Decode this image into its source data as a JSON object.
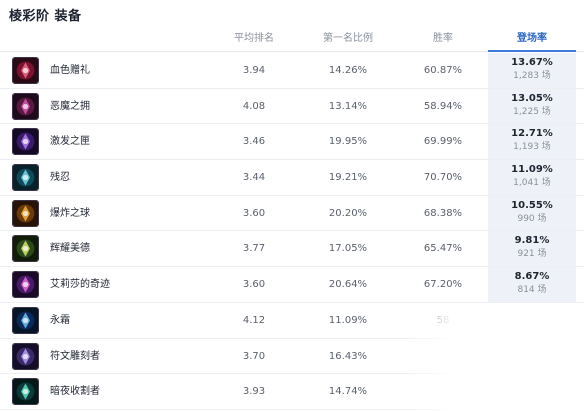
{
  "page": {
    "title": "棱彩阶 装备"
  },
  "columns": {
    "avg_rank": "平均排名",
    "top1_rate": "第一名比例",
    "win_rate": "胜率",
    "pick_rate": "登场率"
  },
  "colors": {
    "accent": "#3d7be0",
    "highlight_bg": "#eef2f8"
  },
  "items": [
    {
      "name": "血色赠礼",
      "icon": "crimson-gift-icon",
      "avg_rank": "3.94",
      "top1_rate": "14.26%",
      "win_rate": "60.87%",
      "pick_rate": "13.67%",
      "games": "1,283 场"
    },
    {
      "name": "恶魔之拥",
      "icon": "demonic-embrace-icon",
      "avg_rank": "4.08",
      "top1_rate": "13.14%",
      "win_rate": "58.94%",
      "pick_rate": "13.05%",
      "games": "1,225 场"
    },
    {
      "name": "激发之匣",
      "icon": "excitation-box-icon",
      "avg_rank": "3.46",
      "top1_rate": "19.95%",
      "win_rate": "69.99%",
      "pick_rate": "12.71%",
      "games": "1,193 场"
    },
    {
      "name": "残忍",
      "icon": "cruelty-icon",
      "avg_rank": "3.44",
      "top1_rate": "19.21%",
      "win_rate": "70.70%",
      "pick_rate": "11.09%",
      "games": "1,041 场"
    },
    {
      "name": "爆炸之球",
      "icon": "explosion-orb-icon",
      "avg_rank": "3.60",
      "top1_rate": "20.20%",
      "win_rate": "68.38%",
      "pick_rate": "10.55%",
      "games": "990 场"
    },
    {
      "name": "辉耀美德",
      "icon": "radiant-virtue-icon",
      "avg_rank": "3.77",
      "top1_rate": "17.05%",
      "win_rate": "65.47%",
      "pick_rate": "9.81%",
      "games": "921 场"
    },
    {
      "name": "艾莉莎的奇迹",
      "icon": "elisa-miracle-icon",
      "avg_rank": "3.60",
      "top1_rate": "20.64%",
      "win_rate": "67.20%",
      "pick_rate": "8.67%",
      "games": "814 场"
    },
    {
      "name": "永霜",
      "icon": "everfrost-icon",
      "avg_rank": "4.12",
      "top1_rate": "11.09%",
      "win_rate": "58",
      "pick_rate": "",
      "games": ""
    },
    {
      "name": "符文雕刻者",
      "icon": "rune-carver-icon",
      "avg_rank": "3.70",
      "top1_rate": "16.43%",
      "win_rate": "",
      "pick_rate": "",
      "games": ""
    },
    {
      "name": "暗夜收割者",
      "icon": "night-harvester-icon",
      "avg_rank": "3.93",
      "top1_rate": "14.74%",
      "win_rate": "",
      "pick_rate": "",
      "games": ""
    }
  ]
}
